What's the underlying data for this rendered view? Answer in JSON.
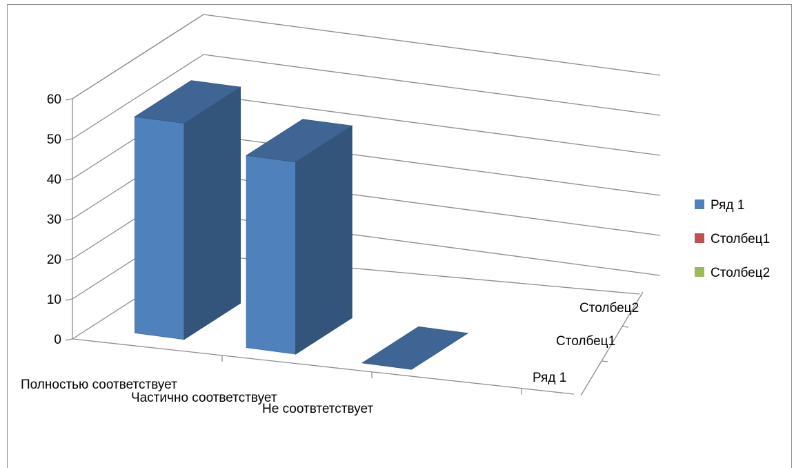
{
  "chart_data": {
    "type": "bar",
    "title": "",
    "xlabel": "",
    "ylabel": "",
    "ylim": [
      0,
      60
    ],
    "yticks": [
      "0",
      "10",
      "20",
      "30",
      "40",
      "50",
      "60"
    ],
    "categories": [
      "Полностью соответствует",
      "Частично соответствует",
      "Не соотвтетствует"
    ],
    "depth_labels": [
      "Ряд 1",
      "Столбец1",
      "Столбец2"
    ],
    "series": [
      {
        "name": "Ряд 1",
        "values": [
          54,
          48,
          0
        ],
        "color": "#4f81bd"
      },
      {
        "name": "Столбец1",
        "values": [
          0,
          0,
          0
        ],
        "color": "#c0504d"
      },
      {
        "name": "Столбец2",
        "values": [
          0,
          0,
          0
        ],
        "color": "#9bbb59"
      }
    ],
    "grid": true,
    "legend": "right",
    "style": "3d-column"
  }
}
